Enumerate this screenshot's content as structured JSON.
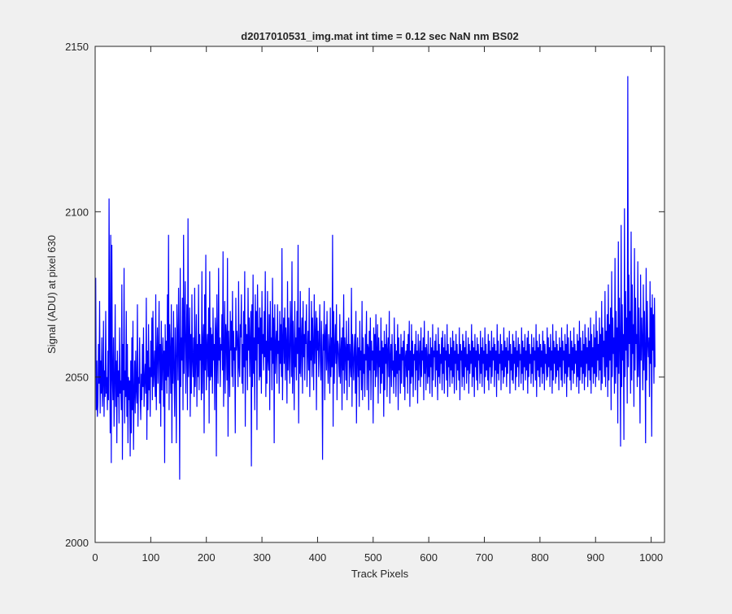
{
  "chart_data": {
    "type": "line",
    "title": "d2017010531_img.mat int time = 0.12 sec  NaN nm BS02",
    "xlabel": "Track Pixels",
    "ylabel": "Signal (ADU) at pixel 630",
    "xlim": [
      0,
      1024
    ],
    "ylim": [
      2000,
      2150
    ],
    "xticks": [
      0,
      100,
      200,
      300,
      400,
      500,
      600,
      700,
      800,
      900,
      1000
    ],
    "yticks": [
      2000,
      2050,
      2100,
      2150
    ],
    "grid": false,
    "series_color": "#0000ff",
    "series": [
      {
        "x_start": 1,
        "x_step": 1,
        "values": [
          2080,
          2040,
          2055,
          2038,
          2042,
          2060,
          2048,
          2073,
          2039,
          2055,
          2045,
          2062,
          2041,
          2048,
          2067,
          2038,
          2052,
          2044,
          2070,
          2045,
          2050,
          2040,
          2058,
          2043,
          2104,
          2062,
          2033,
          2093,
          2024,
          2090,
          2050,
          2043,
          2062,
          2035,
          2048,
          2072,
          2041,
          2055,
          2030,
          2058,
          2044,
          2052,
          2036,
          2065,
          2045,
          2049,
          2040,
          2078,
          2025,
          2060,
          2046,
          2083,
          2036,
          2052,
          2044,
          2070,
          2038,
          2060,
          2030,
          2050,
          2043,
          2049,
          2026,
          2055,
          2033,
          2062,
          2040,
          2067,
          2028,
          2045,
          2055,
          2039,
          2058,
          2046,
          2042,
          2072,
          2035,
          2050,
          2048,
          2062,
          2044,
          2037,
          2051,
          2043,
          2060,
          2047,
          2065,
          2041,
          2049,
          2054,
          2045,
          2074,
          2031,
          2058,
          2040,
          2066,
          2046,
          2053,
          2038,
          2061,
          2050,
          2068,
          2043,
          2070,
          2047,
          2052,
          2058,
          2044,
          2075,
          2040,
          2056,
          2065,
          2048,
          2057,
          2073,
          2042,
          2060,
          2035,
          2067,
          2046,
          2055,
          2062,
          2041,
          2058,
          2024,
          2066,
          2049,
          2061,
          2045,
          2075,
          2050,
          2093,
          2040,
          2066,
          2057,
          2045,
          2072,
          2030,
          2062,
          2048,
          2070,
          2052,
          2038,
          2065,
          2055,
          2030,
          2072,
          2061,
          2049,
          2077,
          2058,
          2019,
          2083,
          2047,
          2062,
          2055,
          2074,
          2040,
          2093,
          2051,
          2064,
          2079,
          2045,
          2060,
          2072,
          2040,
          2098,
          2050,
          2058,
          2071,
          2038,
          2063,
          2045,
          2075,
          2055,
          2050,
          2062,
          2044,
          2077,
          2047,
          2056,
          2069,
          2041,
          2060,
          2050,
          2078,
          2046,
          2063,
          2055,
          2060,
          2043,
          2082,
          2045,
          2060,
          2066,
          2033,
          2075,
          2052,
          2087,
          2046,
          2058,
          2063,
          2050,
          2071,
          2036,
          2082,
          2049,
          2065,
          2050,
          2063,
          2045,
          2071,
          2055,
          2060,
          2040,
          2068,
          2064,
          2026,
          2075,
          2057,
          2048,
          2083,
          2055,
          2062,
          2047,
          2060,
          2058,
          2069,
          2052,
          2088,
          2041,
          2055,
          2073,
          2045,
          2066,
          2062,
          2049,
          2086,
          2032,
          2064,
          2056,
          2044,
          2070,
          2058,
          2067,
          2050,
          2076,
          2047,
          2064,
          2055,
          2059,
          2033,
          2074,
          2058,
          2064,
          2060,
          2047,
          2079,
          2053,
          2050,
          2066,
          2062,
          2075,
          2048,
          2060,
          2045,
          2070,
          2053,
          2082,
          2035,
          2066,
          2055,
          2063,
          2046,
          2077,
          2058,
          2068,
          2050,
          2061,
          2070,
          2023,
          2072,
          2047,
          2081,
          2051,
          2062,
          2040,
          2075,
          2055,
          2070,
          2034,
          2078,
          2060,
          2065,
          2049,
          2071,
          2050,
          2068,
          2045,
          2076,
          2057,
          2063,
          2052,
          2070,
          2056,
          2082,
          2044,
          2061,
          2048,
          2076,
          2055,
          2052,
          2069,
          2040,
          2073,
          2058,
          2062,
          2046,
          2080,
          2054,
          2068,
          2030,
          2072,
          2051,
          2060,
          2064,
          2048,
          2072,
          2057,
          2061,
          2045,
          2070,
          2054,
          2066,
          2050,
          2089,
          2043,
          2060,
          2068,
          2054,
          2071,
          2049,
          2065,
          2060,
          2042,
          2079,
          2052,
          2068,
          2057,
          2048,
          2073,
          2062,
          2050,
          2085,
          2045,
          2067,
          2058,
          2040,
          2073,
          2053,
          2062,
          2049,
          2070,
          2057,
          2090,
          2036,
          2065,
          2051,
          2076,
          2050,
          2060,
          2068,
          2045,
          2073,
          2056,
          2063,
          2049,
          2067,
          2060,
          2072,
          2047,
          2058,
          2064,
          2052,
          2077,
          2044,
          2061,
          2055,
          2073,
          2050,
          2068,
          2059,
          2046,
          2075,
          2054,
          2062,
          2070,
          2040,
          2068,
          2058,
          2064,
          2050,
          2060,
          2072,
          2055,
          2049,
          2067,
          2056,
          2025,
          2063,
          2058,
          2073,
          2043,
          2062,
          2066,
          2052,
          2070,
          2055,
          2048,
          2063,
          2058,
          2045,
          2071,
          2050,
          2062,
          2053,
          2093,
          2035,
          2070,
          2048,
          2058,
          2066,
          2054,
          2072,
          2043,
          2061,
          2060,
          2055,
          2050,
          2069,
          2048,
          2057,
          2062,
          2040,
          2065,
          2052,
          2075,
          2045,
          2062,
          2058,
          2049,
          2067,
          2043,
          2060,
          2055,
          2068,
          2047,
          2060,
          2054,
          2050,
          2077,
          2041,
          2063,
          2056,
          2049,
          2058,
          2063,
          2045,
          2070,
          2036,
          2055,
          2062,
          2050,
          2059,
          2041,
          2067,
          2052,
          2058,
          2046,
          2073,
          2043,
          2062,
          2051,
          2057,
          2044,
          2063,
          2055,
          2070,
          2046,
          2060,
          2059,
          2040,
          2064,
          2052,
          2068,
          2043,
          2061,
          2055,
          2058,
          2036,
          2065,
          2052,
          2063,
          2047,
          2069,
          2050,
          2056,
          2066,
          2042,
          2062,
          2053,
          2058,
          2045,
          2068,
          2048,
          2061,
          2051,
          2059,
          2038,
          2064,
          2046,
          2060,
          2054,
          2066,
          2044,
          2058,
          2062,
          2050,
          2070,
          2042,
          2056,
          2060,
          2047,
          2063,
          2052,
          2055,
          2045,
          2068,
          2050,
          2060,
          2044,
          2058,
          2051,
          2066,
          2040,
          2062,
          2052,
          2057,
          2045,
          2063,
          2048,
          2059,
          2055,
          2061,
          2047,
          2064,
          2043,
          2056,
          2058,
          2050,
          2060,
          2045,
          2063,
          2052,
          2067,
          2041,
          2058,
          2048,
          2066,
          2050,
          2061,
          2044,
          2057,
          2055,
          2060,
          2046,
          2064,
          2052,
          2058,
          2042,
          2063,
          2049,
          2056,
          2061,
          2047,
          2065,
          2050,
          2058,
          2055,
          2062,
          2043,
          2067,
          2051,
          2059,
          2046,
          2060,
          2055,
          2048,
          2064,
          2050,
          2057,
          2045,
          2062,
          2053,
          2059,
          2044,
          2066,
          2049,
          2058,
          2056,
          2061,
          2047,
          2063,
          2052,
          2058,
          2043,
          2065,
          2050,
          2060,
          2048,
          2057,
          2054,
          2062,
          2046,
          2064,
          2051,
          2059,
          2045,
          2063,
          2055,
          2058,
          2049,
          2066,
          2044,
          2060,
          2053,
          2057,
          2047,
          2062,
          2052,
          2059,
          2048,
          2064,
          2050,
          2061,
          2045,
          2058,
          2054,
          2063,
          2046,
          2060,
          2052,
          2057,
          2049,
          2065,
          2043,
          2060,
          2055,
          2058,
          2047,
          2063,
          2050,
          2061,
          2046,
          2059,
          2053,
          2064,
          2048,
          2057,
          2052,
          2062,
          2045,
          2060,
          2051,
          2058,
          2054,
          2066,
          2047,
          2061,
          2050,
          2059,
          2044,
          2063,
          2053,
          2058,
          2049,
          2062,
          2046,
          2060,
          2055,
          2057,
          2048,
          2064,
          2051,
          2059,
          2047,
          2062,
          2054,
          2058,
          2045,
          2065,
          2050,
          2060,
          2052,
          2057,
          2049,
          2063,
          2046,
          2061,
          2053,
          2058,
          2048,
          2064,
          2050,
          2059,
          2055,
          2062,
          2047,
          2060,
          2052,
          2058,
          2044,
          2066,
          2051,
          2061,
          2049,
          2057,
          2054,
          2063,
          2046,
          2060,
          2052,
          2058,
          2048,
          2065,
          2050,
          2061,
          2053,
          2059,
          2047,
          2062,
          2051,
          2058,
          2055,
          2064,
          2045,
          2060,
          2052,
          2057,
          2049,
          2063,
          2048,
          2061,
          2054,
          2059,
          2046,
          2064,
          2050,
          2058,
          2053,
          2062,
          2047,
          2060,
          2055,
          2057,
          2048,
          2065,
          2051,
          2061,
          2046,
          2059,
          2053,
          2063,
          2049,
          2058,
          2052,
          2062,
          2045,
          2064,
          2050,
          2060,
          2054,
          2057,
          2048,
          2063,
          2051,
          2059,
          2047,
          2062,
          2055,
          2058,
          2049,
          2066,
          2044,
          2061,
          2052,
          2059,
          2050,
          2063,
          2047,
          2060,
          2053,
          2058,
          2048,
          2064,
          2051,
          2061,
          2046,
          2060,
          2054,
          2057,
          2049,
          2065,
          2050,
          2062,
          2053,
          2059,
          2047,
          2063,
          2052,
          2058,
          2045,
          2066,
          2049,
          2061,
          2054,
          2059,
          2048,
          2064,
          2050,
          2060,
          2052,
          2058,
          2046,
          2062,
          2053,
          2059,
          2049,
          2065,
          2047,
          2061,
          2055,
          2058,
          2048,
          2063,
          2051,
          2060,
          2044,
          2066,
          2050,
          2062,
          2053,
          2057,
          2049,
          2064,
          2046,
          2061,
          2052,
          2059,
          2048,
          2065,
          2051,
          2060,
          2054,
          2058,
          2047,
          2063,
          2050,
          2061,
          2045,
          2067,
          2049,
          2062,
          2053,
          2058,
          2048,
          2064,
          2051,
          2060,
          2046,
          2066,
          2050,
          2062,
          2054,
          2059,
          2047,
          2065,
          2052,
          2061,
          2049,
          2068,
          2045,
          2063,
          2053,
          2059,
          2048,
          2066,
          2051,
          2062,
          2047,
          2070,
          2050,
          2064,
          2055,
          2060,
          2049,
          2068,
          2052,
          2063,
          2046,
          2073,
          2048,
          2065,
          2056,
          2061,
          2050,
          2076,
          2047,
          2064,
          2053,
          2069,
          2044,
          2078,
          2049,
          2066,
          2055,
          2071,
          2040,
          2082,
          2050,
          2068,
          2057,
          2062,
          2045,
          2086,
          2048,
          2070,
          2053,
          2065,
          2036,
          2091,
          2051,
          2074,
          2060,
          2029,
          2096,
          2047,
          2072,
          2055,
          2063,
          2031,
          2101,
          2050,
          2076,
          2058,
          2068,
          2042,
          2141,
          2053,
          2081,
          2060,
          2070,
          2045,
          2094,
          2049,
          2078,
          2057,
          2066,
          2041,
          2089,
          2052,
          2074,
          2060,
          2063,
          2047,
          2085,
          2050,
          2071,
          2056,
          2036,
          2081,
          2055,
          2068,
          2061,
          2046,
          2078,
          2052,
          2070,
          2058,
          2030,
          2083,
          2049,
          2073,
          2060,
          2056,
          2062,
          2044,
          2079,
          2054,
          2071,
          2032,
          2075,
          2058,
          2069,
          2048,
          2074,
          2053
        ]
      }
    ]
  }
}
